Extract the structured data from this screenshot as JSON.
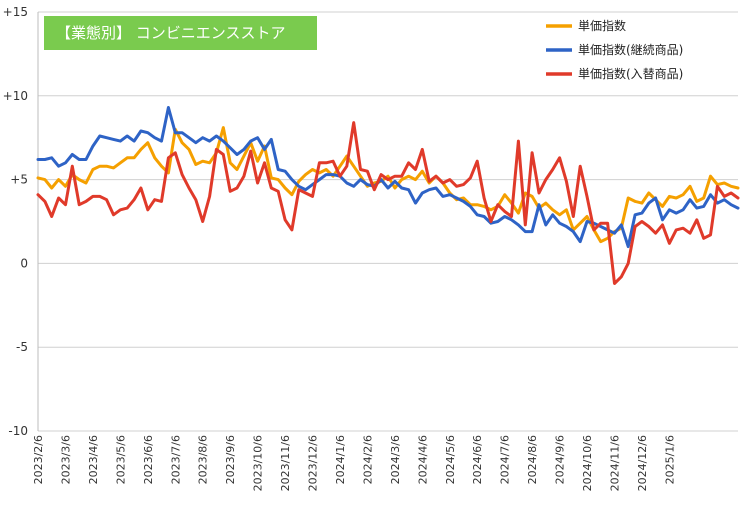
{
  "chart_data": {
    "type": "line",
    "title": "【業態別】 コンビニエンスストア",
    "title_bg_color": "#7ACB4E",
    "ylim": [
      -10,
      15
    ],
    "yticks": [
      15,
      10,
      5,
      0,
      -5,
      -10
    ],
    "ytick_labels": [
      "+15",
      "+10",
      "+5",
      "0",
      "-5",
      "-10"
    ],
    "grid": "horizontal",
    "legend_position": "top-right",
    "x_tick_labels": [
      "2023/2/6",
      "2023/3/6",
      "2023/4/6",
      "2023/5/6",
      "2023/6/6",
      "2023/7/6",
      "2023/8/6",
      "2023/9/6",
      "2023/10/6",
      "2023/11/6",
      "2023/12/6",
      "2024/1/6",
      "2024/2/6",
      "2024/3/6",
      "2024/4/6",
      "2024/5/6",
      "2024/6/6",
      "2024/7/6",
      "2024/8/6",
      "2024/9/6",
      "2024/10/6",
      "2024/11/6",
      "2024/12/6",
      "2025/1/6"
    ],
    "points_per_month": 4,
    "series": [
      {
        "name": "単価指数",
        "color": "#F5A000",
        "values": [
          5.1,
          5.0,
          4.5,
          5.0,
          4.6,
          5.3,
          5.0,
          4.8,
          5.6,
          5.8,
          5.8,
          5.7,
          6.0,
          6.3,
          6.3,
          6.8,
          7.2,
          6.3,
          5.8,
          5.4,
          8.0,
          7.2,
          6.8,
          5.9,
          6.1,
          6.0,
          6.6,
          8.1,
          6.0,
          5.6,
          6.4,
          7.2,
          6.1,
          7.0,
          5.1,
          5.0,
          4.5,
          4.1,
          4.9,
          5.3,
          5.6,
          5.4,
          5.6,
          5.2,
          5.8,
          6.4,
          5.8,
          5.2,
          4.6,
          4.8,
          4.9,
          5.2,
          4.5,
          5.0,
          5.2,
          5.0,
          5.5,
          4.8,
          5.2,
          4.8,
          4.2,
          3.8,
          3.9,
          3.5,
          3.5,
          3.4,
          3.2,
          3.4,
          4.1,
          3.6,
          3.0,
          4.2,
          4.0,
          3.3,
          3.6,
          3.2,
          2.9,
          3.2,
          2.0,
          2.4,
          2.8,
          2.0,
          1.3,
          1.5,
          1.9,
          2.1,
          3.9,
          3.7,
          3.6,
          4.2,
          3.8,
          3.4,
          4.0,
          3.9,
          4.1,
          4.6,
          3.7,
          3.9,
          5.2,
          4.7,
          4.8,
          4.6,
          4.5
        ]
      },
      {
        "name": "単価指数(継続商品)",
        "color": "#2E63C6",
        "values": [
          6.2,
          6.2,
          6.3,
          5.8,
          6.0,
          6.5,
          6.2,
          6.2,
          7.0,
          7.6,
          7.5,
          7.4,
          7.3,
          7.6,
          7.3,
          7.9,
          7.8,
          7.5,
          7.3,
          9.3,
          7.8,
          7.8,
          7.5,
          7.2,
          7.5,
          7.3,
          7.6,
          7.3,
          6.9,
          6.5,
          6.8,
          7.3,
          7.5,
          6.8,
          7.4,
          5.6,
          5.5,
          5.0,
          4.6,
          4.4,
          4.7,
          5.0,
          5.3,
          5.3,
          5.2,
          4.8,
          4.6,
          5.0,
          4.7,
          4.6,
          5.0,
          4.5,
          4.9,
          4.5,
          4.4,
          3.6,
          4.2,
          4.4,
          4.5,
          4.0,
          4.1,
          3.9,
          3.7,
          3.4,
          2.9,
          2.8,
          2.4,
          2.5,
          2.8,
          2.6,
          2.3,
          1.9,
          1.9,
          3.5,
          2.3,
          2.9,
          2.4,
          2.2,
          1.9,
          1.3,
          2.5,
          2.4,
          2.2,
          2.0,
          1.8,
          2.3,
          1.0,
          2.9,
          3.0,
          3.6,
          3.9,
          2.6,
          3.2,
          3.0,
          3.2,
          3.8,
          3.3,
          3.4,
          4.1,
          3.6,
          3.8,
          3.5,
          3.3
        ]
      },
      {
        "name": "単価指数(入替商品)",
        "color": "#E03A2A",
        "values": [
          4.1,
          3.7,
          2.8,
          3.9,
          3.5,
          5.8,
          3.5,
          3.7,
          4.0,
          4.0,
          3.8,
          2.9,
          3.2,
          3.3,
          3.8,
          4.5,
          3.2,
          3.8,
          3.7,
          6.3,
          6.6,
          5.3,
          4.5,
          3.8,
          2.5,
          4.0,
          6.8,
          6.5,
          4.3,
          4.5,
          5.2,
          6.7,
          4.8,
          6.0,
          4.5,
          4.3,
          2.6,
          2.0,
          4.4,
          4.2,
          4.0,
          6.0,
          6.0,
          6.1,
          5.2,
          5.8,
          8.4,
          5.6,
          5.5,
          4.4,
          5.3,
          5.0,
          5.2,
          5.2,
          6.0,
          5.6,
          6.8,
          4.9,
          5.2,
          4.8,
          5.0,
          4.6,
          4.7,
          5.1,
          6.1,
          3.9,
          2.5,
          3.5,
          3.1,
          2.8,
          7.3,
          2.3,
          6.6,
          4.2,
          5.0,
          5.6,
          6.3,
          4.9,
          2.8,
          5.8,
          4.0,
          2.0,
          2.4,
          2.4,
          -1.2,
          -0.8,
          0.0,
          2.2,
          2.5,
          2.2,
          1.8,
          2.3,
          1.2,
          2.0,
          2.1,
          1.8,
          2.6,
          1.5,
          1.7,
          4.6,
          4.0,
          4.2,
          3.9
        ]
      }
    ]
  }
}
